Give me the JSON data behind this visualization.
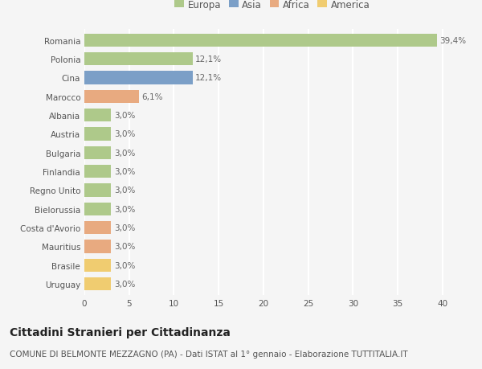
{
  "countries": [
    "Romania",
    "Polonia",
    "Cina",
    "Marocco",
    "Albania",
    "Austria",
    "Bulgaria",
    "Finlandia",
    "Regno Unito",
    "Bielorussia",
    "Costa d'Avorio",
    "Mauritius",
    "Brasile",
    "Uruguay"
  ],
  "values": [
    39.4,
    12.1,
    12.1,
    6.1,
    3.0,
    3.0,
    3.0,
    3.0,
    3.0,
    3.0,
    3.0,
    3.0,
    3.0,
    3.0
  ],
  "labels": [
    "39,4%",
    "12,1%",
    "12,1%",
    "6,1%",
    "3,0%",
    "3,0%",
    "3,0%",
    "3,0%",
    "3,0%",
    "3,0%",
    "3,0%",
    "3,0%",
    "3,0%",
    "3,0%"
  ],
  "continents": [
    "Europa",
    "Europa",
    "Asia",
    "Africa",
    "Europa",
    "Europa",
    "Europa",
    "Europa",
    "Europa",
    "Europa",
    "Africa",
    "Africa",
    "America",
    "America"
  ],
  "colors": {
    "Europa": "#aec98a",
    "Asia": "#7b9fc7",
    "Africa": "#e8aa80",
    "America": "#f0cc70"
  },
  "legend_order": [
    "Europa",
    "Asia",
    "Africa",
    "America"
  ],
  "xlim": [
    0,
    42
  ],
  "xticks": [
    0,
    5,
    10,
    15,
    20,
    25,
    30,
    35,
    40
  ],
  "title": "Cittadini Stranieri per Cittadinanza",
  "subtitle": "COMUNE DI BELMONTE MEZZAGNO (PA) - Dati ISTAT al 1° gennaio - Elaborazione TUTTITALIA.IT",
  "background_color": "#f5f5f5",
  "grid_color": "#ffffff",
  "bar_height": 0.7,
  "title_fontsize": 10,
  "subtitle_fontsize": 7.5,
  "label_fontsize": 7.5,
  "tick_fontsize": 7.5,
  "legend_fontsize": 8.5
}
